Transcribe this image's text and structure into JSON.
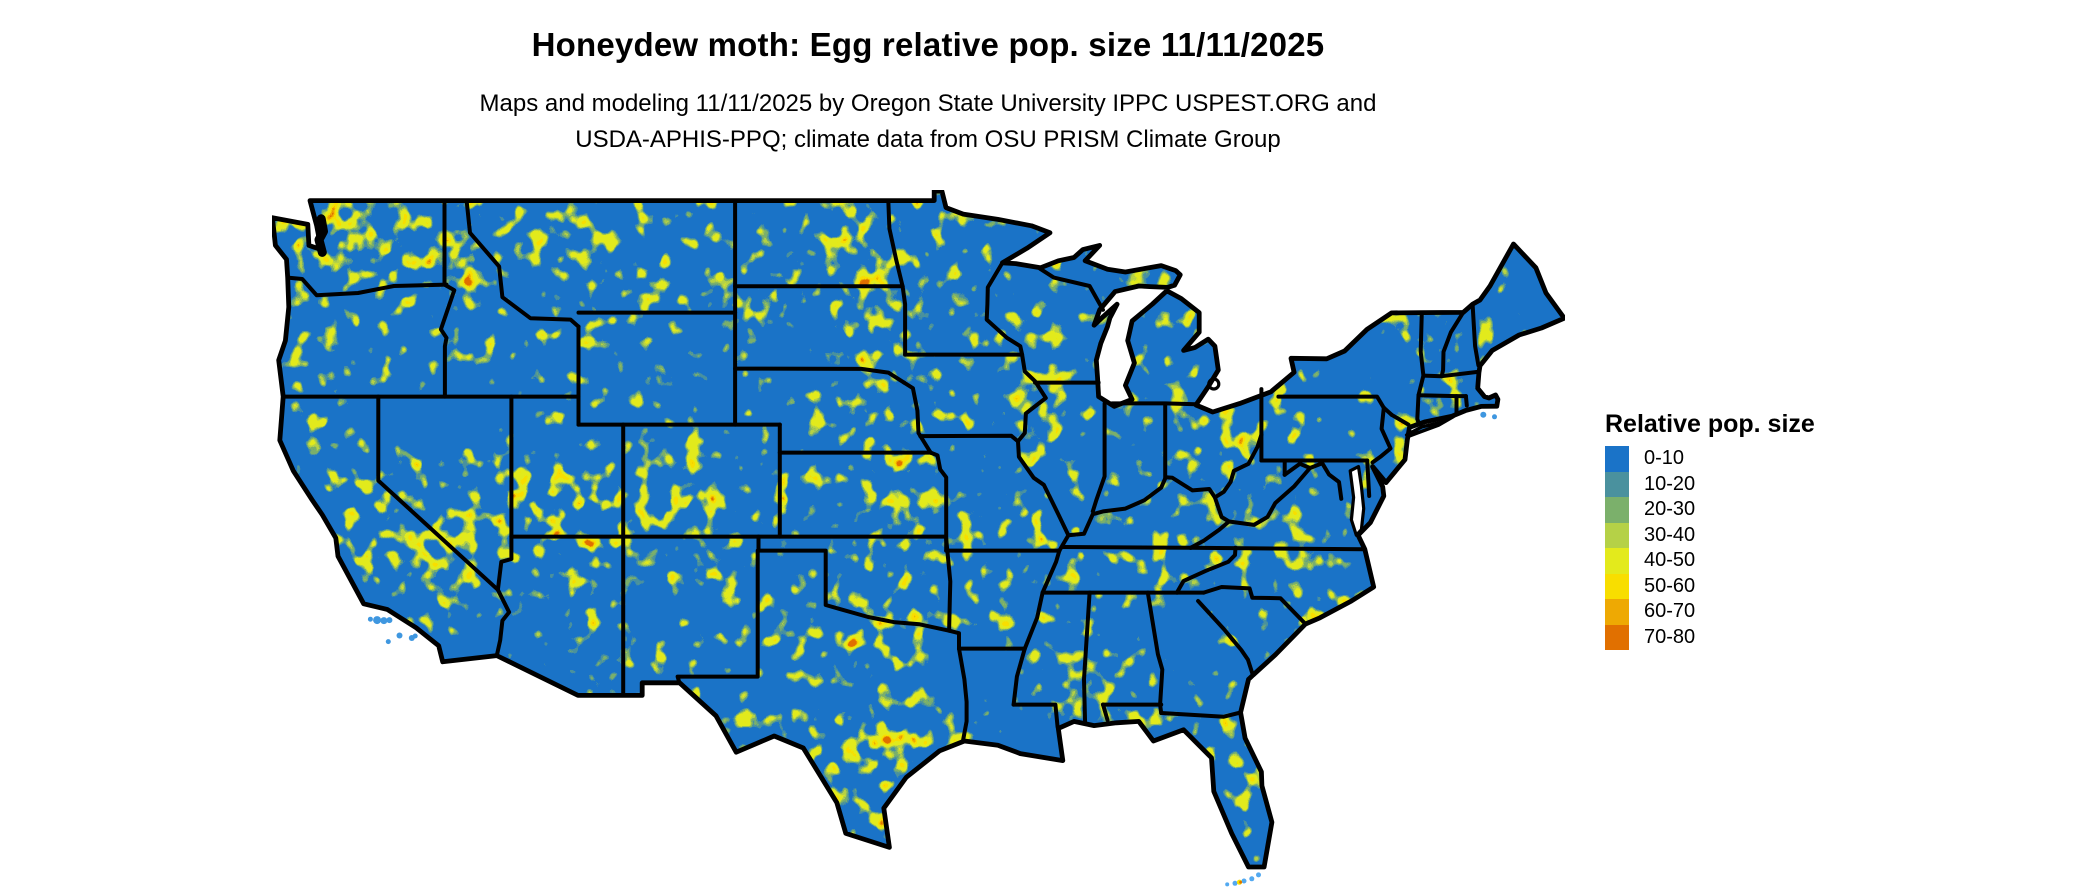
{
  "header": {
    "title": "Honeydew moth: Egg relative pop. size 11/11/2025",
    "subtitle_line1": "Maps and modeling 11/11/2025 by Oregon State University IPPC USPEST.ORG and",
    "subtitle_line2": "USDA-APHIS-PPQ; climate data from OSU PRISM Climate Group"
  },
  "legend": {
    "title": "Relative pop. size",
    "items": [
      {
        "label": "0-10",
        "color": "#1a73c8"
      },
      {
        "label": "10-20",
        "color": "#4a919e"
      },
      {
        "label": "20-30",
        "color": "#7bb06b"
      },
      {
        "label": "30-40",
        "color": "#b5d147"
      },
      {
        "label": "40-50",
        "color": "#e3ea1c"
      },
      {
        "label": "50-60",
        "color": "#f8de00"
      },
      {
        "label": "60-70",
        "color": "#eea903"
      },
      {
        "label": "70-80",
        "color": "#e17000"
      }
    ]
  },
  "map": {
    "land_base_color": "#1a73c8",
    "border_color": "#000000",
    "water_color": "#ffffff",
    "island_color": "#3f97e0",
    "keys_color": "#53a9f0"
  }
}
